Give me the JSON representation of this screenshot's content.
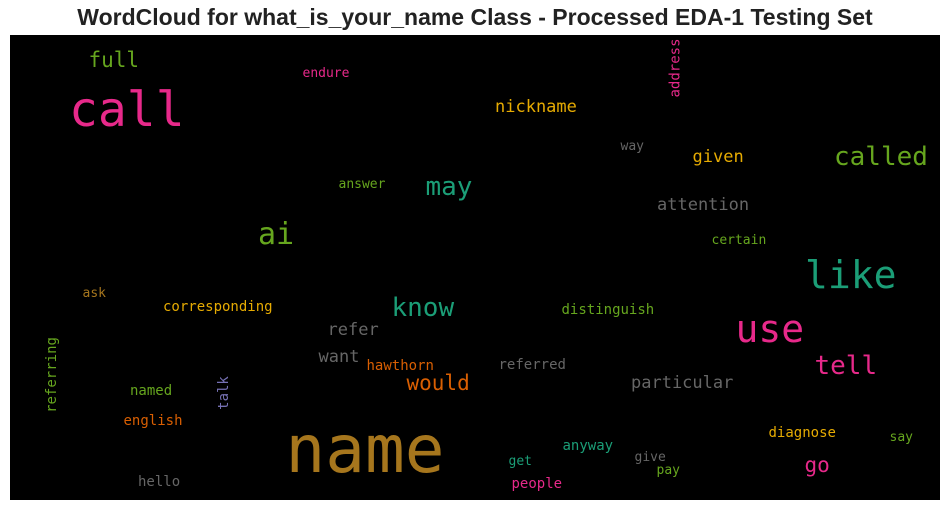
{
  "chart_data": {
    "type": "wordcloud",
    "title": "WordCloud for what_is_your_name Class - Processed EDA-1 Testing Set",
    "background": "#000000",
    "words": [
      {
        "text": "name",
        "color": "#a6761d"
      },
      {
        "text": "call",
        "color": "#e7298a"
      },
      {
        "text": "like",
        "color": "#1b9e77"
      },
      {
        "text": "use",
        "color": "#e7298a"
      },
      {
        "text": "called",
        "color": "#66a61e"
      },
      {
        "text": "ai",
        "color": "#66a61e"
      },
      {
        "text": "know",
        "color": "#1b9e77"
      },
      {
        "text": "may",
        "color": "#1b9e77"
      },
      {
        "text": "tell",
        "color": "#e7298a"
      },
      {
        "text": "would",
        "color": "#d95f02"
      },
      {
        "text": "full",
        "color": "#66a61e"
      },
      {
        "text": "nickname",
        "color": "#e6ab02"
      },
      {
        "text": "go",
        "color": "#e7298a"
      },
      {
        "text": "given",
        "color": "#e6ab02"
      },
      {
        "text": "attention",
        "color": "#666666"
      },
      {
        "text": "particular",
        "color": "#666666"
      },
      {
        "text": "refer",
        "color": "#666666"
      },
      {
        "text": "want",
        "color": "#666666"
      },
      {
        "text": "corresponding",
        "color": "#e6ab02"
      },
      {
        "text": "distinguish",
        "color": "#66a61e"
      },
      {
        "text": "hawthorn",
        "color": "#d95f02"
      },
      {
        "text": "referred",
        "color": "#666666"
      },
      {
        "text": "english",
        "color": "#d95f02"
      },
      {
        "text": "named",
        "color": "#66a61e"
      },
      {
        "text": "diagnose",
        "color": "#e6ab02"
      },
      {
        "text": "anyway",
        "color": "#1b9e77"
      },
      {
        "text": "endure",
        "color": "#e7298a"
      },
      {
        "text": "answer",
        "color": "#66a61e"
      },
      {
        "text": "certain",
        "color": "#66a61e"
      },
      {
        "text": "way",
        "color": "#666666"
      },
      {
        "text": "ask",
        "color": "#a6761d"
      },
      {
        "text": "say",
        "color": "#66a61e"
      },
      {
        "text": "get",
        "color": "#1b9e77"
      },
      {
        "text": "give",
        "color": "#666666"
      },
      {
        "text": "pay",
        "color": "#66a61e"
      },
      {
        "text": "people",
        "color": "#e7298a"
      },
      {
        "text": "hello",
        "color": "#666666"
      },
      {
        "text": "address",
        "color": "#e7298a"
      },
      {
        "text": "referring",
        "color": "#66a61e"
      },
      {
        "text": "talk",
        "color": "#7570b3"
      }
    ]
  }
}
